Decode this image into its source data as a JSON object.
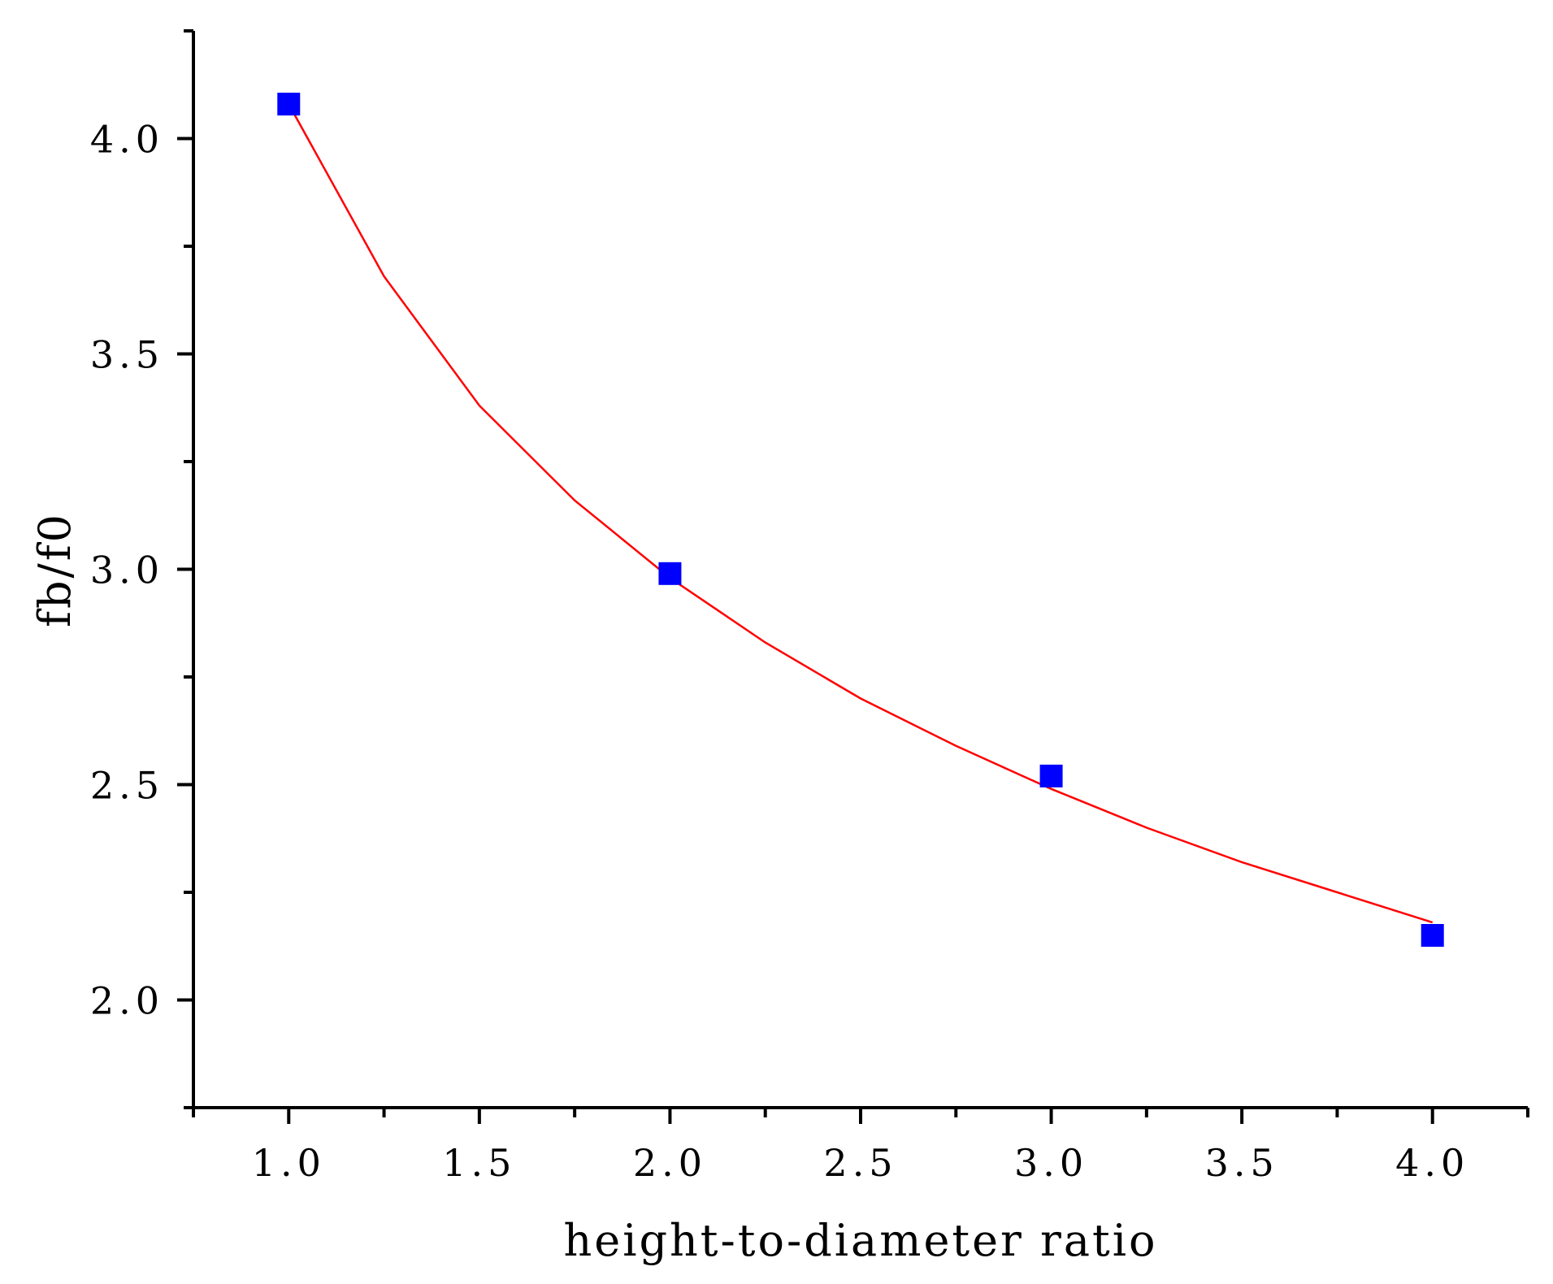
{
  "chart_data": {
    "type": "scatter",
    "title": "",
    "xlabel": "height-to-diameter ratio",
    "ylabel": "fb/f0",
    "xlim": [
      0.75,
      4.25
    ],
    "ylim": [
      1.75,
      4.25
    ],
    "x_ticks": [
      "1.0",
      "1.5",
      "2.0",
      "2.5",
      "3.0",
      "3.5",
      "4.0"
    ],
    "y_ticks": [
      "2.0",
      "2.5",
      "3.0",
      "3.5",
      "4.0"
    ],
    "grid": false,
    "legend": "none",
    "series": [
      {
        "type": "scatter",
        "marker": "square",
        "color": "#0000ff",
        "x": [
          1.0,
          2.0,
          3.0,
          4.0
        ],
        "y": [
          4.08,
          2.99,
          2.52,
          2.15
        ]
      },
      {
        "type": "line",
        "color": "#ff0000",
        "x": [
          1.0,
          1.25,
          1.5,
          1.75,
          2.0,
          2.25,
          2.5,
          2.75,
          3.0,
          3.25,
          3.5,
          3.75,
          4.0
        ],
        "y": [
          4.08,
          3.68,
          3.38,
          3.16,
          2.98,
          2.83,
          2.7,
          2.59,
          2.49,
          2.4,
          2.32,
          2.25,
          2.18
        ]
      }
    ]
  }
}
